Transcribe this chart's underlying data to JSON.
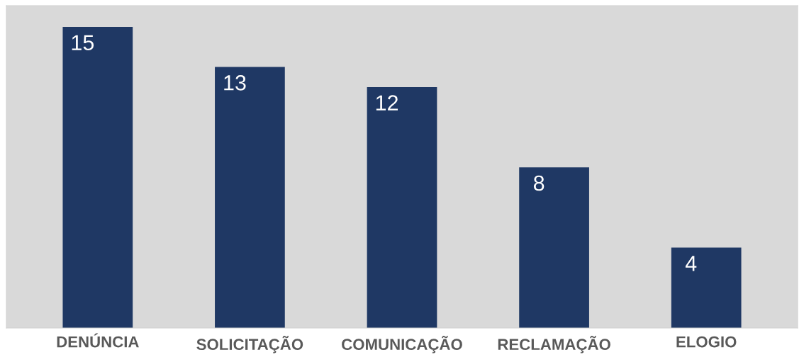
{
  "chart_data": {
    "type": "bar",
    "categories": [
      "DENÚNCIA",
      "SOLICITAÇÃO",
      "COMUNICAÇÃO",
      "RECLAMAÇÃO",
      "ELOGIO"
    ],
    "values": [
      15,
      13,
      12,
      8,
      4
    ],
    "color": "#1f3864",
    "data_labels": true,
    "grid": false,
    "legend": false
  }
}
